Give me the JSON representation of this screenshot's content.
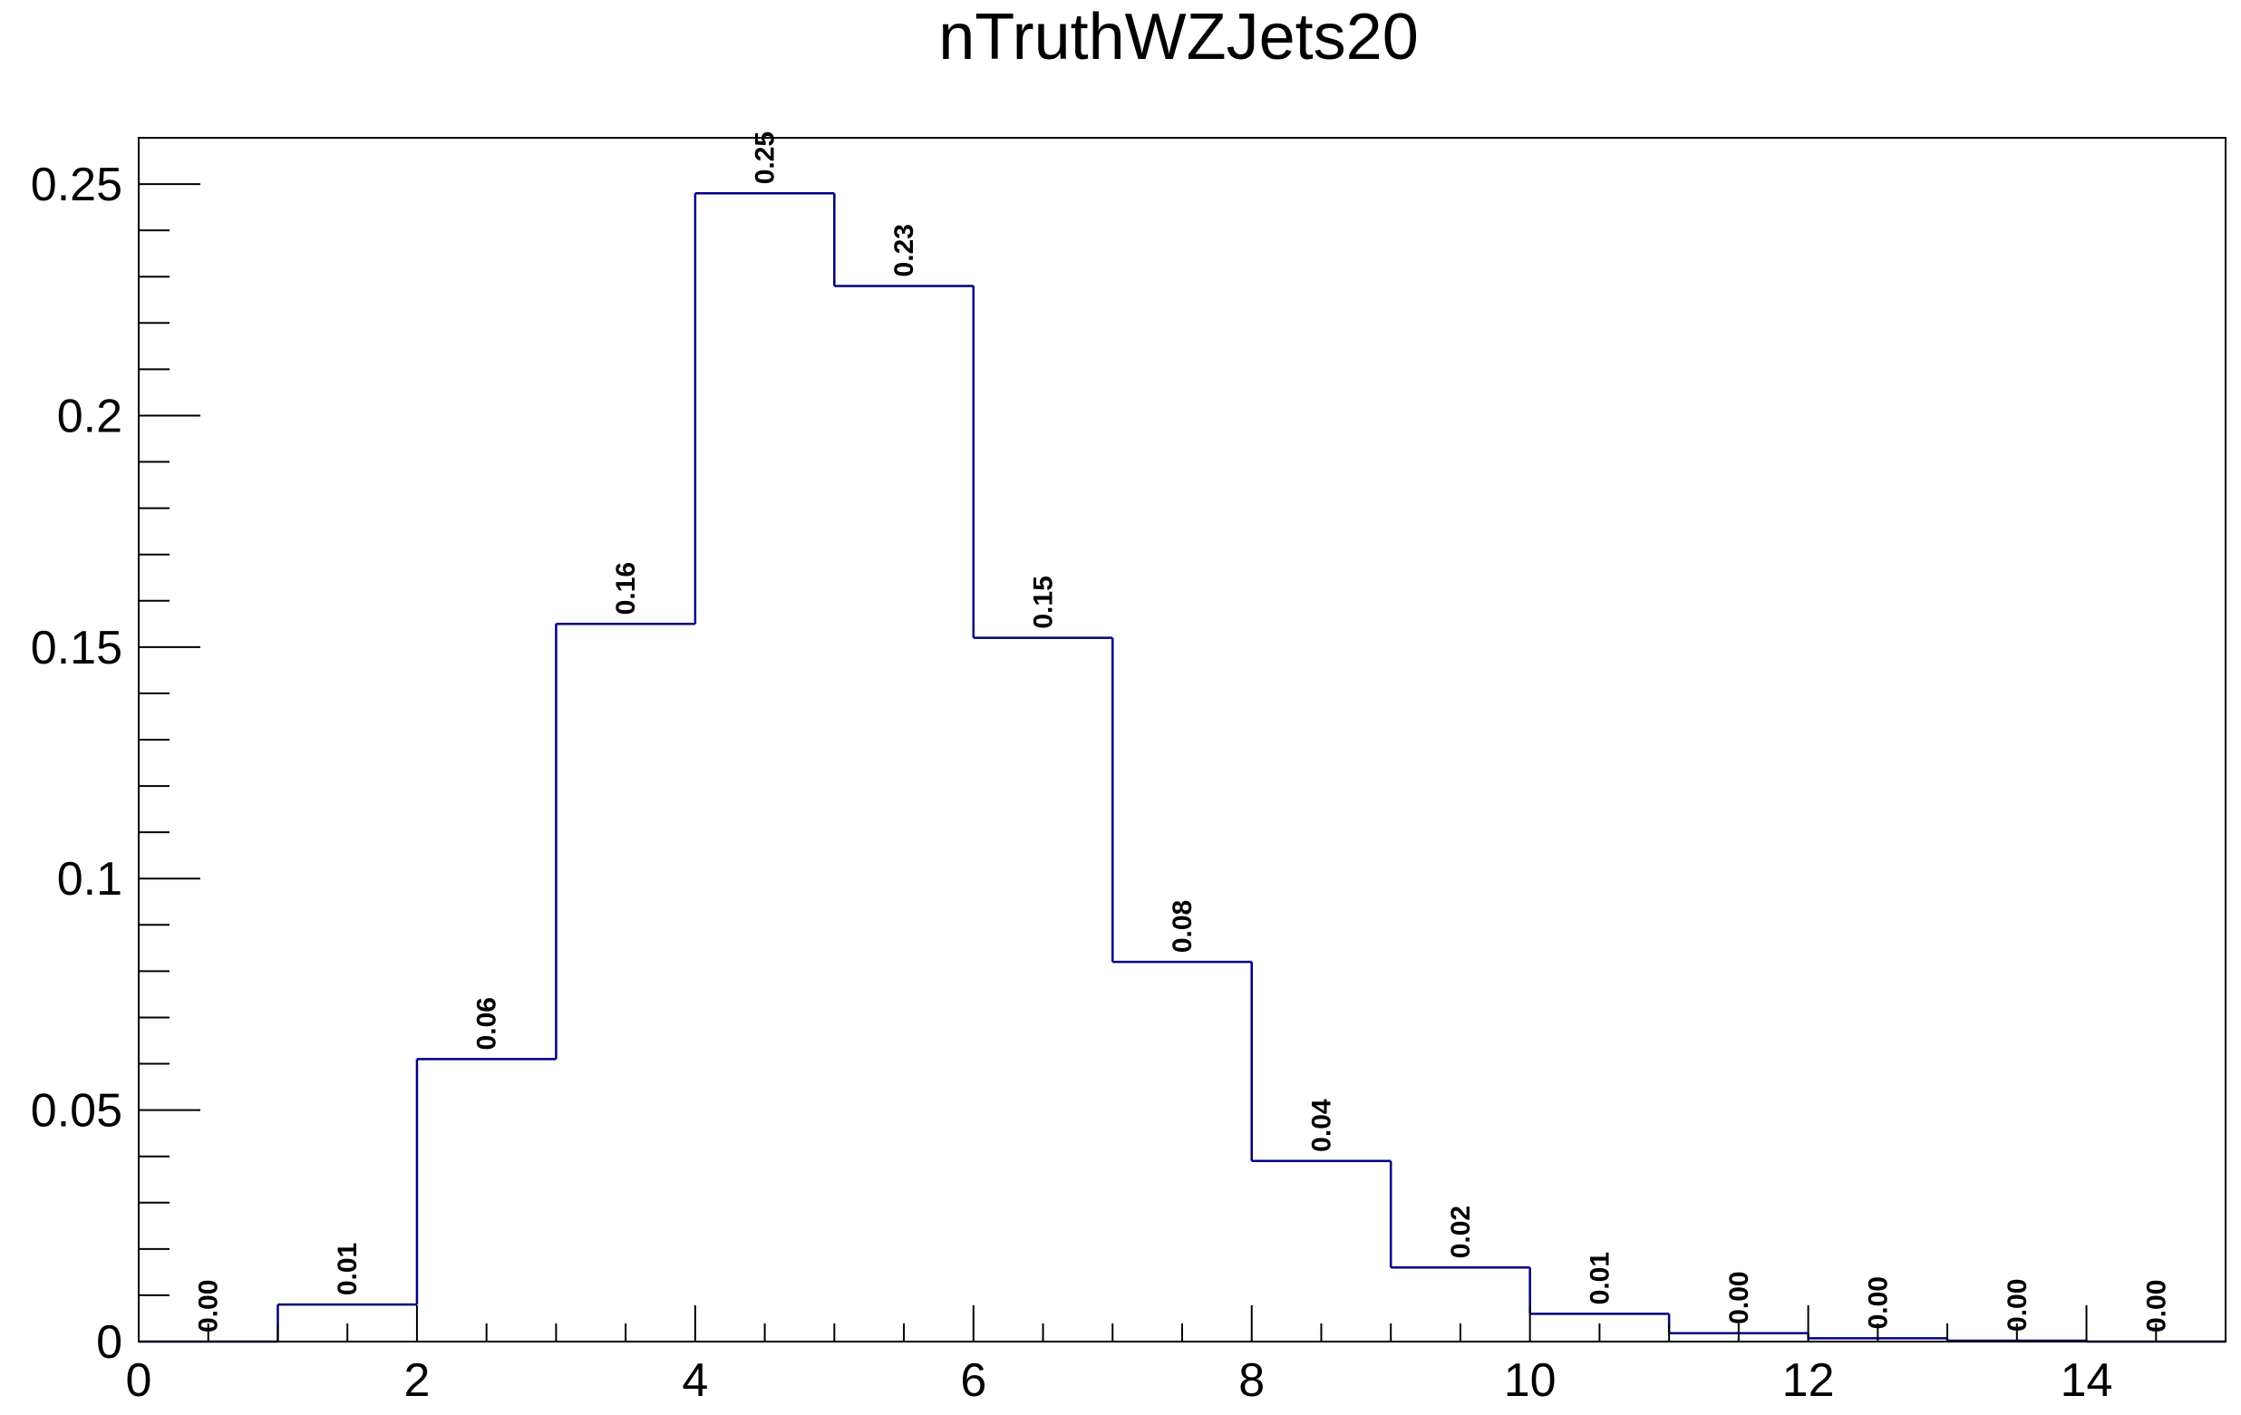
{
  "chart_data": {
    "type": "bar",
    "title": "nTruthWZJets20",
    "xlabel": "",
    "ylabel": "",
    "xlim": [
      0,
      15
    ],
    "ylim": [
      0,
      0.26
    ],
    "bin_edges": [
      0,
      1,
      2,
      3,
      4,
      5,
      6,
      7,
      8,
      9,
      10,
      11,
      12,
      13,
      14,
      15
    ],
    "values": [
      0.0,
      0.008,
      0.061,
      0.155,
      0.248,
      0.228,
      0.152,
      0.082,
      0.039,
      0.016,
      0.006,
      0.0018,
      0.0007,
      0.0002,
      0.0
    ],
    "bin_labels": [
      "0.00",
      "0.01",
      "0.06",
      "0.16",
      "0.25",
      "0.23",
      "0.15",
      "0.08",
      "0.04",
      "0.02",
      "0.01",
      "0.00",
      "0.00",
      "0.00",
      "0.00"
    ],
    "x_ticks": [
      {
        "value": 0,
        "label": "0"
      },
      {
        "value": 2,
        "label": "2"
      },
      {
        "value": 4,
        "label": "4"
      },
      {
        "value": 6,
        "label": "6"
      },
      {
        "value": 8,
        "label": "8"
      },
      {
        "value": 10,
        "label": "10"
      },
      {
        "value": 12,
        "label": "12"
      },
      {
        "value": 14,
        "label": "14"
      }
    ],
    "y_ticks": [
      {
        "value": 0,
        "label": "0"
      },
      {
        "value": 0.05,
        "label": "0.05"
      },
      {
        "value": 0.1,
        "label": "0.1"
      },
      {
        "value": 0.15,
        "label": "0.15"
      },
      {
        "value": 0.2,
        "label": "0.2"
      },
      {
        "value": 0.25,
        "label": "0.25"
      }
    ],
    "grid": false,
    "legend": "none",
    "colors": {
      "histogram_line": "#000080",
      "frame": "#000000",
      "background": "#ffffff"
    }
  }
}
